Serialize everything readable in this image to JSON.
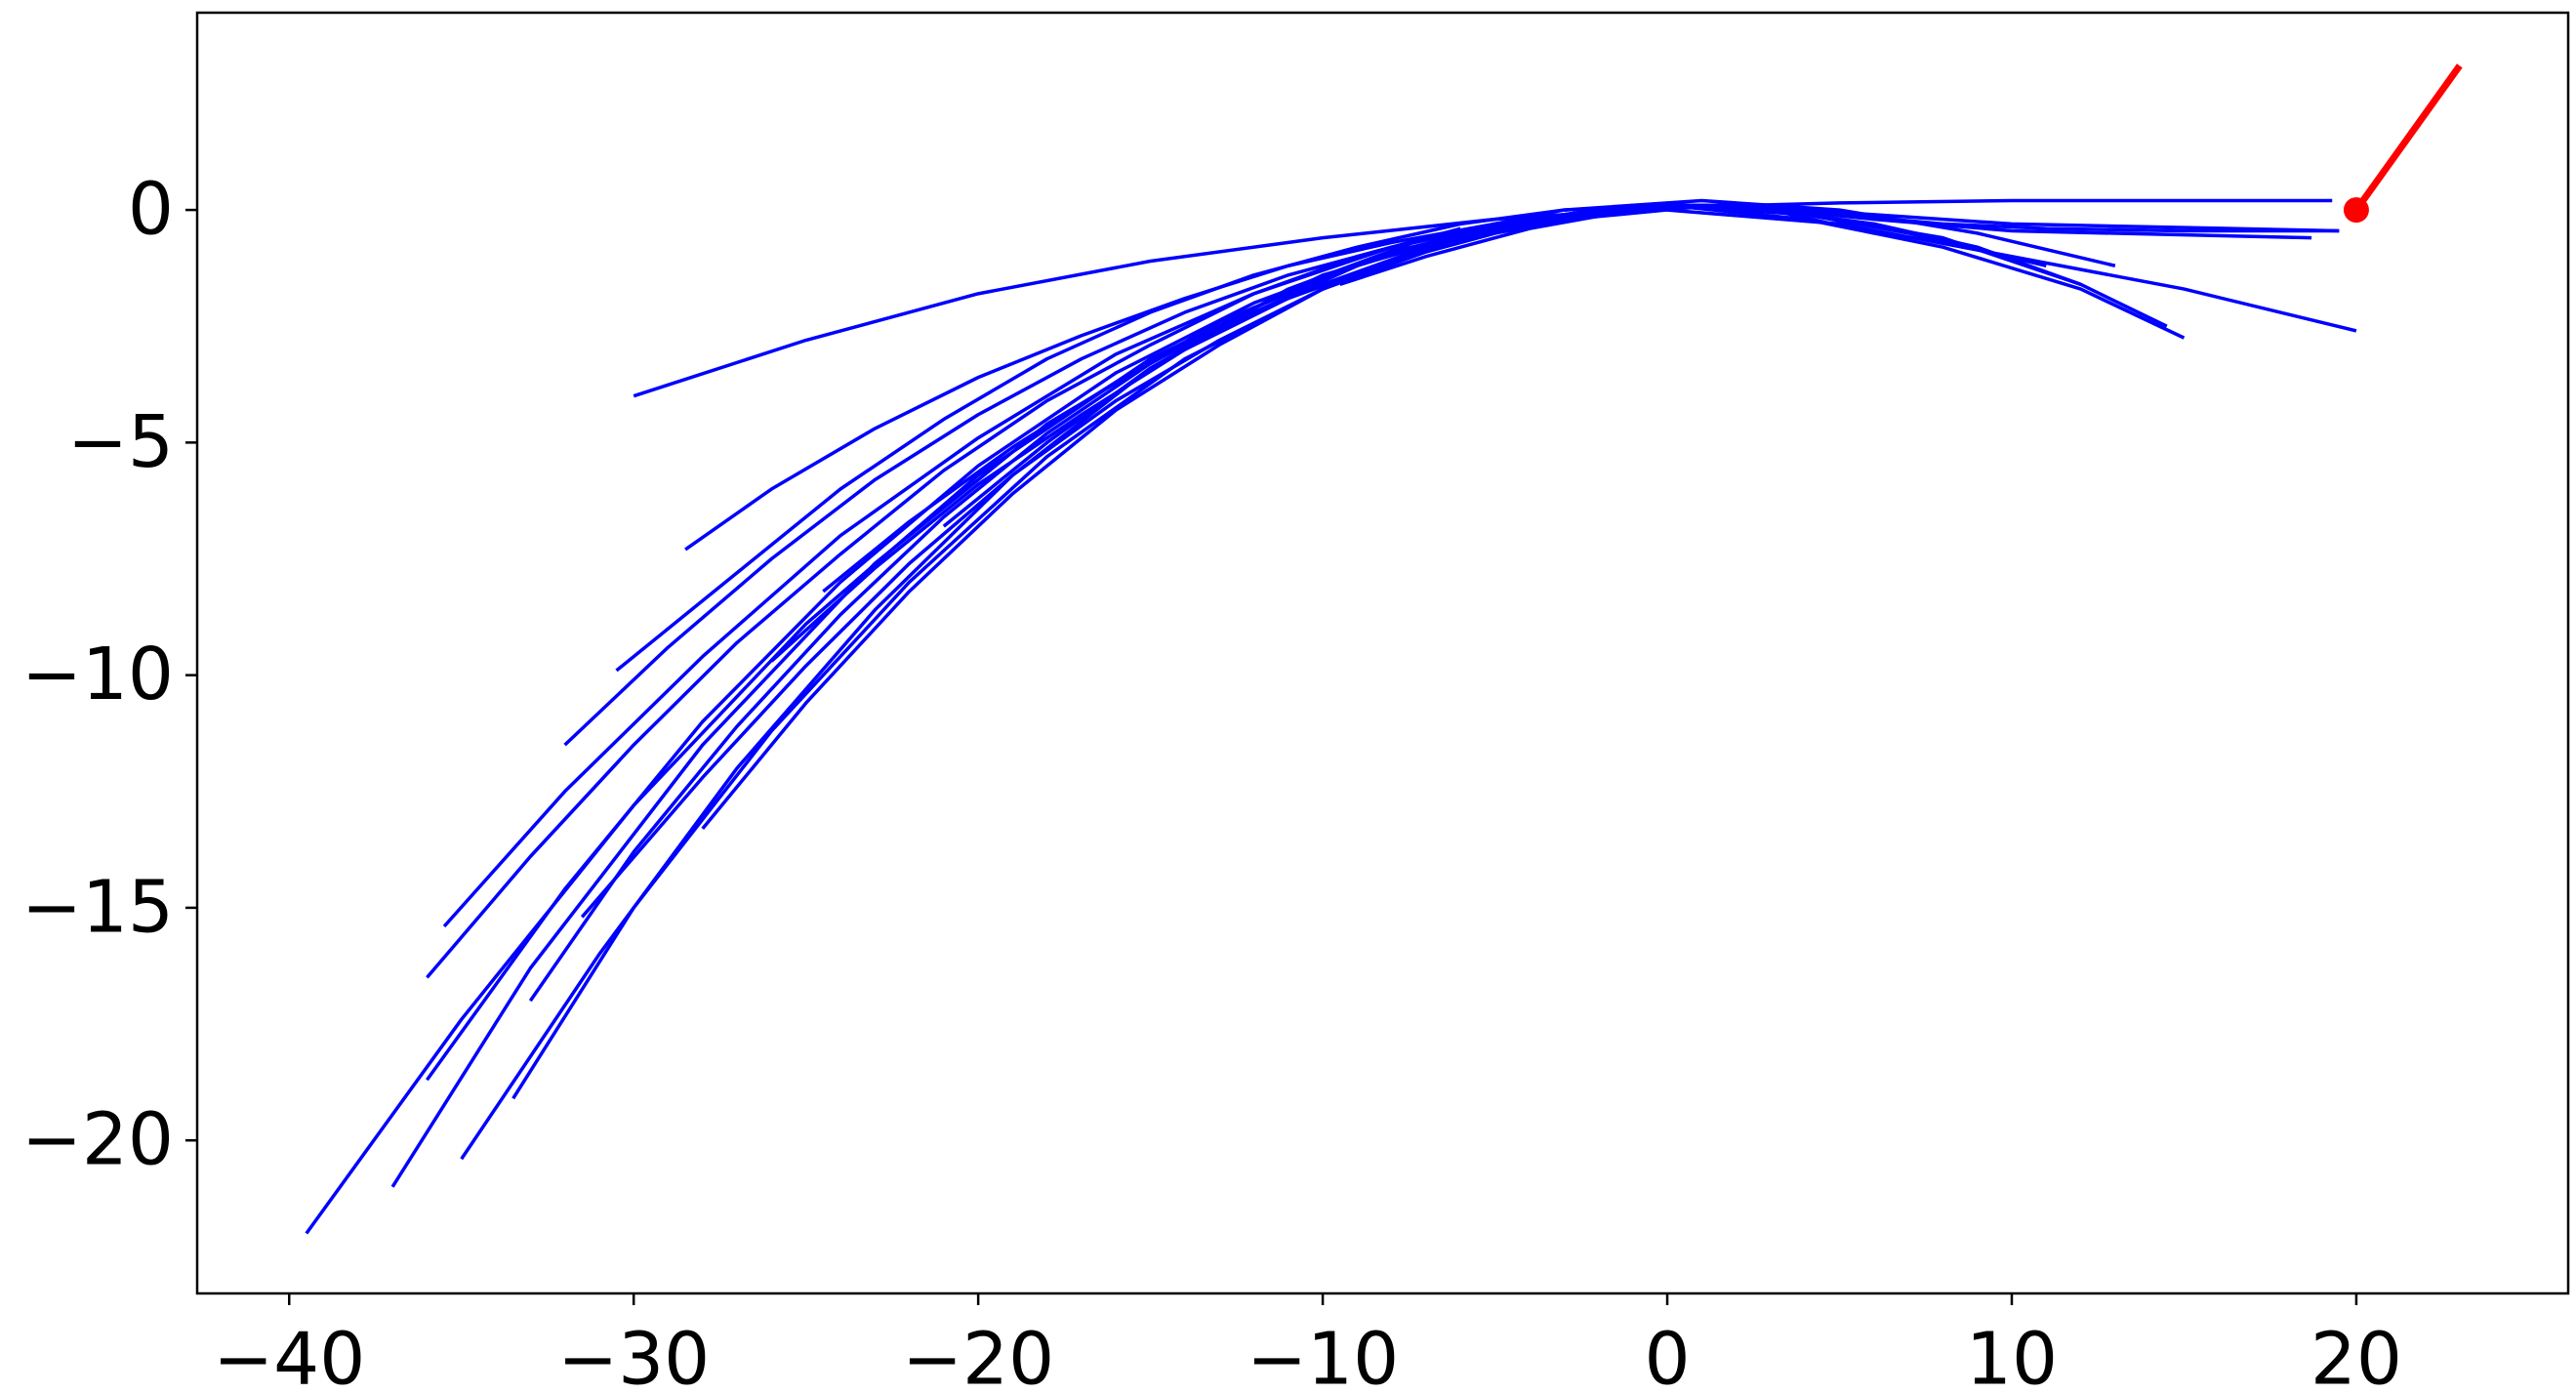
{
  "chart_data": {
    "type": "line",
    "xlim": [
      -42.67,
      26.15
    ],
    "ylim": [
      -23.29,
      4.24
    ],
    "xticks": [
      {
        "value": -40,
        "label": "−40"
      },
      {
        "value": -30,
        "label": "−30"
      },
      {
        "value": -20,
        "label": "−20"
      },
      {
        "value": -10,
        "label": "−10"
      },
      0,
      10,
      20
    ],
    "yticks": [
      {
        "value": -20,
        "label": "−20"
      },
      {
        "value": -15,
        "label": "−15"
      },
      {
        "value": -10,
        "label": "−10"
      },
      {
        "value": -5,
        "label": "−5"
      },
      0
    ],
    "grid": false,
    "series": [
      {
        "color": "#0000ff",
        "x": [
          -30,
          -25,
          -20,
          -15,
          -10,
          -5,
          0,
          5,
          10,
          15,
          19.3
        ],
        "values": [
          -4,
          -2.8,
          -1.8,
          -1.1,
          -0.6,
          -0.2,
          0.05,
          0.15,
          0.2,
          0.2,
          0.2
        ]
      },
      {
        "color": "#0000ff",
        "x": [
          -39.5,
          -35,
          -30,
          -25,
          -20,
          -15,
          -10,
          -5,
          0,
          5,
          10,
          15,
          20
        ],
        "values": [
          -22.0,
          -17.4,
          -12.8,
          -8.9,
          -5.7,
          -3.2,
          -1.4,
          -0.35,
          0,
          -0.3,
          -1.0,
          -1.7,
          -2.6
        ]
      },
      {
        "color": "#0000ff",
        "x": [
          -37,
          -33,
          -28,
          -23,
          -18,
          -13,
          -8,
          -3,
          2,
          6,
          10,
          18.7
        ],
        "values": [
          -21,
          -16.3,
          -11.5,
          -7.6,
          -4.6,
          -2.4,
          -0.9,
          -0.1,
          0.1,
          -0.2,
          -0.45,
          -0.6
        ]
      },
      {
        "color": "#0000ff",
        "x": [
          -36,
          -32,
          -28,
          -24,
          -20,
          -16,
          -12,
          -8,
          -4,
          0,
          4,
          8,
          12,
          15
        ],
        "values": [
          -18.7,
          -14.6,
          -11.0,
          -8.0,
          -5.5,
          -3.5,
          -2.0,
          -0.9,
          -0.2,
          0.1,
          -0.2,
          -0.8,
          -1.7,
          -2.75
        ]
      },
      {
        "color": "#0000ff",
        "x": [
          -35.5,
          -32,
          -28,
          -24,
          -20,
          -16,
          -12,
          -8,
          -4,
          0,
          4,
          8,
          12,
          14.5
        ],
        "values": [
          -15.4,
          -12.5,
          -9.6,
          -7.0,
          -4.9,
          -3.1,
          -1.8,
          -0.8,
          -0.2,
          0.1,
          -0.1,
          -0.6,
          -1.6,
          -2.5
        ]
      },
      {
        "color": "#0000ff",
        "x": [
          -35,
          -31,
          -27,
          -23,
          -19,
          -15,
          -11,
          -7,
          -3,
          1,
          5,
          9,
          13
        ],
        "values": [
          -20.4,
          -16,
          -12,
          -8.6,
          -5.7,
          -3.4,
          -1.7,
          -0.6,
          0,
          0.2,
          0,
          -0.5,
          -1.2
        ]
      },
      {
        "color": "#0000ff",
        "x": [
          -33.5,
          -30,
          -26,
          -22,
          -18,
          -14,
          -10,
          -6,
          -2,
          2,
          6,
          10,
          19.5
        ],
        "values": [
          -19.1,
          -15,
          -11.2,
          -8.0,
          -5.3,
          -3.2,
          -1.7,
          -0.6,
          0,
          0.1,
          -0.1,
          -0.3,
          -0.45
        ]
      },
      {
        "color": "#0000ff",
        "x": [
          -28.5,
          -26,
          -23,
          -20,
          -17,
          -14,
          -11,
          -8,
          -5,
          -2,
          1
        ],
        "values": [
          -7.3,
          -6.0,
          -4.7,
          -3.6,
          -2.7,
          -1.9,
          -1.2,
          -0.7,
          -0.3,
          0,
          0.1
        ]
      },
      {
        "color": "#0000ff",
        "x": [
          -30.5,
          -27,
          -24,
          -21,
          -18,
          -15,
          -12,
          -9,
          -6,
          -3,
          0,
          3
        ],
        "values": [
          -9.9,
          -7.8,
          -6.0,
          -4.5,
          -3.2,
          -2.2,
          -1.4,
          -0.8,
          -0.3,
          0,
          0.1,
          0
        ]
      },
      {
        "color": "#0000ff",
        "x": [
          -32,
          -29,
          -26,
          -23,
          -20,
          -17,
          -14,
          -11,
          -8,
          -5,
          -2,
          1,
          4,
          7,
          11
        ],
        "values": [
          -11.5,
          -9.4,
          -7.5,
          -5.8,
          -4.4,
          -3.2,
          -2.2,
          -1.4,
          -0.8,
          -0.3,
          0,
          0.1,
          -0.1,
          -0.5,
          -1.2
        ]
      },
      {
        "color": "#0000ff",
        "x": [
          -33,
          -30,
          -27,
          -24,
          -21,
          -18,
          -15,
          -12,
          -9,
          -6,
          -3,
          0,
          3,
          6,
          9,
          12
        ],
        "values": [
          -17,
          -13.8,
          -11.1,
          -8.7,
          -6.6,
          -4.8,
          -3.3,
          -2.1,
          -1.2,
          -0.5,
          -0.1,
          0.1,
          0,
          -0.3,
          -0.8,
          -1.6
        ]
      },
      {
        "color": "#0000ff",
        "x": [
          -28,
          -25,
          -22,
          -19,
          -16,
          -13,
          -10,
          -7,
          -4,
          -1,
          2
        ],
        "values": [
          -13.3,
          -10.6,
          -8.2,
          -6.1,
          -4.3,
          -2.9,
          -1.7,
          -0.8,
          -0.2,
          0.1,
          0.1
        ]
      },
      {
        "color": "#0000ff",
        "x": [
          -21,
          -18,
          -15,
          -12,
          -9,
          -6,
          -3,
          0,
          3,
          6
        ],
        "values": [
          -6.8,
          -5.0,
          -3.4,
          -2.2,
          -1.2,
          -0.5,
          -0.1,
          0.1,
          0,
          -0.5
        ]
      },
      {
        "color": "#0000ff",
        "x": [
          -9.5,
          -7,
          -4,
          -1,
          2,
          5,
          8,
          11,
          15,
          19.5
        ],
        "values": [
          -1.6,
          -1.0,
          -0.4,
          0,
          0.1,
          -0.1,
          -0.3,
          -0.4,
          -0.45,
          -0.45
        ]
      },
      {
        "color": "#0000ff",
        "x": [
          -24.5,
          -22,
          -19,
          -16,
          -13,
          -10,
          -7,
          -4,
          -1,
          2
        ],
        "values": [
          -8.2,
          -6.7,
          -5.1,
          -3.7,
          -2.5,
          -1.6,
          -0.8,
          -0.3,
          0,
          0.1
        ]
      },
      {
        "color": "#0000ff",
        "x": [
          -26,
          -23,
          -20,
          -17,
          -14,
          -11,
          -8,
          -5,
          -2,
          1,
          4
        ],
        "values": [
          -9.7,
          -7.7,
          -5.9,
          -4.4,
          -3.0,
          -1.9,
          -1.1,
          -0.5,
          -0.1,
          0.1,
          0
        ]
      },
      {
        "color": "#0000ff",
        "x": [
          -31.5,
          -28,
          -25,
          -22,
          -19,
          -16,
          -13,
          -10,
          -7,
          -4,
          -1
        ],
        "values": [
          -15.2,
          -12.2,
          -9.8,
          -7.6,
          -5.7,
          -4.1,
          -2.8,
          -1.7,
          -0.9,
          -0.3,
          0
        ]
      },
      {
        "color": "#0000ff",
        "x": [
          -36,
          -33,
          -30,
          -27,
          -24,
          -21,
          -18,
          -15,
          -12,
          -9,
          -6
        ],
        "values": [
          -16.5,
          -13.9,
          -11.5,
          -9.3,
          -7.4,
          -5.6,
          -4.1,
          -2.9,
          -1.8,
          -1.0,
          -0.4
        ]
      },
      {
        "color": "#ff0000",
        "x": [
          20,
          23
        ],
        "values": [
          0,
          3.1
        ],
        "marker": "start"
      }
    ]
  }
}
